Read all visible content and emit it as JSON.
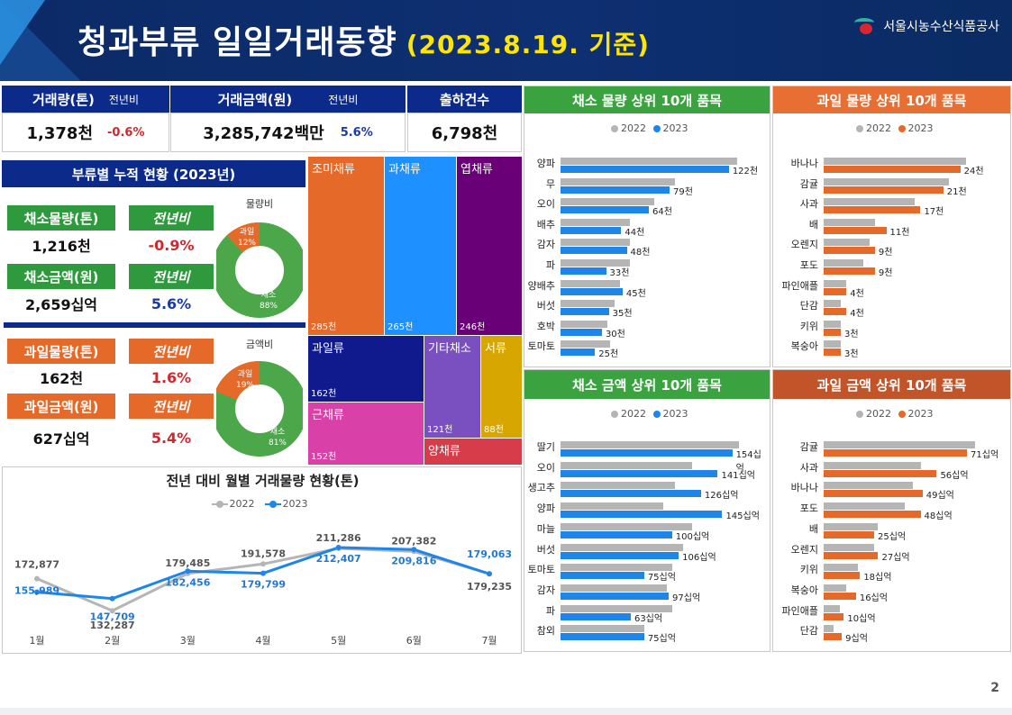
{
  "header": {
    "title": "청과부류 일일거래동향",
    "date": "(2023.8.19. 기준)",
    "org": "서울시농수산식품공사"
  },
  "colors": {
    "veg": "#2f9a3d",
    "fruit": "#e56a2a",
    "y2022": "#b5b5b5",
    "y2023_veg": "#1e86e8",
    "y2023_fruit": "#e56a2a",
    "navy": "#0c2a8a"
  },
  "kpi": {
    "volume_label": "거래량(톤)",
    "volume_yoy_label": "전년비",
    "volume_value": "1,378천",
    "volume_yoy": "-0.6%",
    "amount_label": "거래금액(원)",
    "amount_yoy_label": "전년비",
    "amount_value": "3,285,742백만",
    "amount_yoy": "5.6%",
    "count_label": "출하건수",
    "count_value": "6,798천"
  },
  "category": {
    "title": "부류별 누적 현황 (2023년)",
    "veg_volume_label": "채소물량(톤)",
    "veg_volume_yoy_label": "전년비",
    "veg_volume": "1,216천",
    "veg_volume_yoy": "-0.9%",
    "veg_amount_label": "채소금액(원)",
    "veg_amount_yoy_label": "전년비",
    "veg_amount": "2,659십억",
    "veg_amount_yoy": "5.6%",
    "fruit_volume_label": "과일물량(톤)",
    "fruit_volume_yoy_label": "전년비",
    "fruit_volume": "162천",
    "fruit_volume_yoy": "1.6%",
    "fruit_amount_label": "과일금액(원)",
    "fruit_amount_yoy_label": "전년비",
    "fruit_amount": "627십억",
    "fruit_amount_yoy": "5.4%",
    "donut_volume": {
      "title": "물량비",
      "fruit_label": "과일",
      "fruit_pct": "12%",
      "veg_label": "채소",
      "veg_pct": "88%",
      "fruit_share": 0.12
    },
    "donut_amount": {
      "title": "금액비",
      "fruit_label": "과일",
      "fruit_pct": "19%",
      "veg_label": "채소",
      "veg_pct": "81%",
      "fruit_share": 0.19
    }
  },
  "treemap": [
    {
      "name": "조미채류",
      "value": "285천",
      "color": "#e56a2a"
    },
    {
      "name": "과채류",
      "value": "265천",
      "color": "#1e90ff"
    },
    {
      "name": "엽채류",
      "value": "246천",
      "color": "#6a0078"
    },
    {
      "name": "과일류",
      "value": "162천",
      "color": "#101a8c"
    },
    {
      "name": "기타채소",
      "value": "121천",
      "color": "#7a4fc0"
    },
    {
      "name": "서류",
      "value": "88천",
      "color": "#d7a600"
    },
    {
      "name": "근채류",
      "value": "152천",
      "color": "#d941a8"
    },
    {
      "name": "양채류",
      "value": "",
      "color": "#d63c4a"
    }
  ],
  "line_chart": {
    "title": "전년 대비 월별 거래물량 현황(톤)",
    "legend_2022": "2022",
    "legend_2023": "2023"
  },
  "top_panels": {
    "veg_volume_title": "채소 물량 상위 10개 품목",
    "fruit_volume_title": "과일 물량 상위 10개 품목",
    "veg_amount_title": "채소 금액 상위 10개 품목",
    "fruit_amount_title": "과일 금액 상위 10개 품목",
    "legend_2022": "2022",
    "legend_2023": "2023"
  },
  "chart_data": [
    {
      "type": "line",
      "title": "전년 대비 월별 거래물량 현황(톤)",
      "categories": [
        "1월",
        "2월",
        "3월",
        "4월",
        "5월",
        "6월",
        "7월"
      ],
      "series": [
        {
          "name": "2022",
          "values": [
            172877,
            132287,
            179485,
            191578,
            211286,
            207382,
            179235
          ],
          "labels": [
            "172,877",
            "132,287",
            "179,485",
            "191,578",
            "211,286",
            "207,382",
            "179,235"
          ]
        },
        {
          "name": "2023",
          "values": [
            155989,
            147709,
            182456,
            179799,
            212407,
            209816,
            179063
          ],
          "labels": [
            "155,989",
            "147,709",
            "182,456",
            "179,799",
            "212,407",
            "209,816",
            "179,063"
          ]
        }
      ],
      "legend": "top"
    },
    {
      "type": "bar",
      "title": "채소 물량 상위 10개 품목",
      "categories": [
        "양파",
        "무",
        "오이",
        "배추",
        "감자",
        "파",
        "양배추",
        "버섯",
        "호박",
        "토마토"
      ],
      "series": [
        {
          "name": "2022",
          "values": [
            128,
            83,
            68,
            50,
            50,
            50,
            43,
            39,
            34,
            36
          ]
        },
        {
          "name": "2023",
          "values": [
            122,
            79,
            64,
            44,
            48,
            33,
            45,
            35,
            30,
            25
          ],
          "labels": [
            "122천",
            "79천",
            "64천",
            "44천",
            "48천",
            "33천",
            "45천",
            "35천",
            "30천",
            "25천"
          ]
        }
      ],
      "legend": "top"
    },
    {
      "type": "bar",
      "title": "과일 물량 상위 10개 품목",
      "categories": [
        "바나나",
        "감귤",
        "사과",
        "배",
        "오렌지",
        "포도",
        "파인애플",
        "단감",
        "키위",
        "복숭아"
      ],
      "series": [
        {
          "name": "2022",
          "values": [
            25,
            22,
            16,
            9,
            8,
            7,
            4,
            3,
            3,
            3
          ]
        },
        {
          "name": "2023",
          "values": [
            24,
            21,
            17,
            11,
            9,
            9,
            4,
            4,
            3,
            3
          ],
          "labels": [
            "24천",
            "21천",
            "17천",
            "11천",
            "9천",
            "9천",
            "4천",
            "4천",
            "3천",
            "3천"
          ]
        }
      ],
      "legend": "top"
    },
    {
      "type": "bar",
      "title": "채소 금액 상위 10개 품목",
      "categories": [
        "딸기",
        "오이",
        "생고추",
        "양파",
        "마늘",
        "버섯",
        "토마토",
        "감자",
        "파",
        "참외"
      ],
      "series": [
        {
          "name": "2022",
          "values": [
            160,
            118,
            103,
            92,
            118,
            110,
            100,
            95,
            100,
            75
          ]
        },
        {
          "name": "2023",
          "values": [
            154,
            141,
            126,
            145,
            100,
            106,
            75,
            97,
            63,
            75
          ],
          "labels": [
            "154십억",
            "141십억",
            "126십억",
            "145십억",
            "100십억",
            "106십억",
            "75십억",
            "97십억",
            "63십억",
            "75십억"
          ]
        }
      ],
      "legend": "top"
    },
    {
      "type": "bar",
      "title": "과일 금액 상위 10개 품목",
      "categories": [
        "감귤",
        "사과",
        "바나나",
        "포도",
        "배",
        "오렌지",
        "키위",
        "복숭아",
        "파인애플",
        "단감"
      ],
      "series": [
        {
          "name": "2022",
          "values": [
            75,
            48,
            44,
            40,
            27,
            25,
            17,
            11,
            8,
            5
          ]
        },
        {
          "name": "2023",
          "values": [
            71,
            56,
            49,
            48,
            25,
            27,
            18,
            16,
            10,
            9
          ],
          "labels": [
            "71십억",
            "56십억",
            "49십억",
            "48십억",
            "25십억",
            "27십억",
            "18십억",
            "16십억",
            "10십억",
            "9십억"
          ]
        }
      ],
      "legend": "top"
    }
  ],
  "page_number": "2"
}
